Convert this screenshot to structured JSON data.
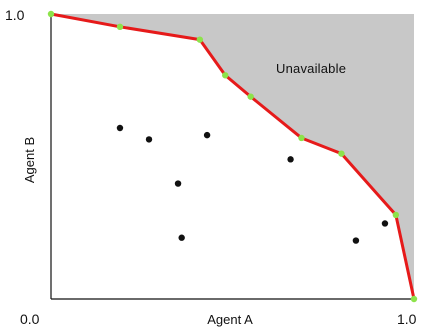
{
  "chart_data": {
    "type": "scatter",
    "title": "",
    "xlabel": "Agent A",
    "ylabel": "Agent B",
    "xlim": [
      0.0,
      1.0
    ],
    "ylim": [
      0.0,
      1.0
    ],
    "x_tick_labels": [
      "0.0",
      "1.0"
    ],
    "y_tick_labels": [
      "1.0"
    ],
    "region_label": "Unavailable",
    "colors": {
      "frontier": "#e61a1a",
      "frontier_points": "#8de34a",
      "unavailable_fill": "#c8c8c8",
      "points": "#111111"
    },
    "frontier": [
      {
        "x": 0.0,
        "y": 1.0
      },
      {
        "x": 0.19,
        "y": 0.955
      },
      {
        "x": 0.41,
        "y": 0.91
      },
      {
        "x": 0.48,
        "y": 0.785
      },
      {
        "x": 0.55,
        "y": 0.71
      },
      {
        "x": 0.69,
        "y": 0.565
      },
      {
        "x": 0.8,
        "y": 0.51
      },
      {
        "x": 0.95,
        "y": 0.295
      },
      {
        "x": 1.0,
        "y": 0.0
      }
    ],
    "points": [
      {
        "x": 0.19,
        "y": 0.6
      },
      {
        "x": 0.27,
        "y": 0.56
      },
      {
        "x": 0.43,
        "y": 0.575
      },
      {
        "x": 0.35,
        "y": 0.405
      },
      {
        "x": 0.66,
        "y": 0.49
      },
      {
        "x": 0.36,
        "y": 0.215
      },
      {
        "x": 0.84,
        "y": 0.205
      },
      {
        "x": 0.92,
        "y": 0.265
      }
    ]
  }
}
